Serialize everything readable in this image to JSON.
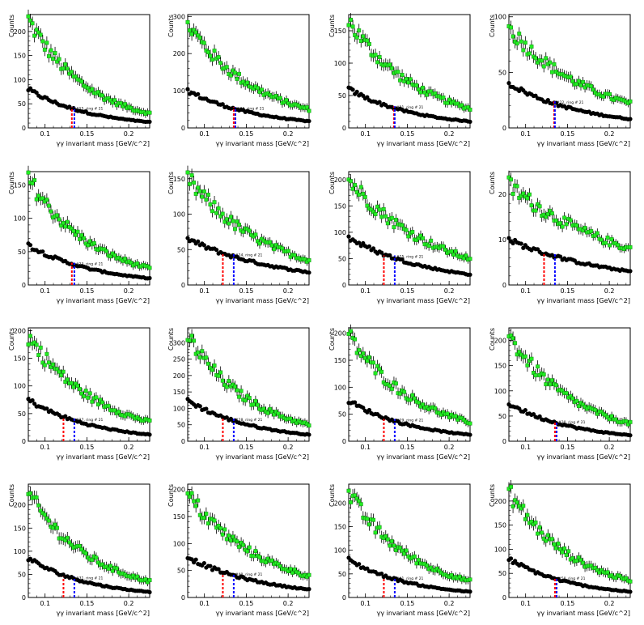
{
  "figure": {
    "colors": {
      "black_series": "#000000",
      "green_series": "#22ee22",
      "red_line": "#ff0000",
      "blue_line": "#0000ff",
      "frame": "#000000"
    }
  },
  "chart_data": [
    {
      "type": "scatter",
      "xlim": [
        0.08,
        0.225
      ],
      "ylim": [
        0,
        235
      ],
      "yticks": [
        0,
        50,
        100,
        150,
        200
      ],
      "xticks": [
        0.1,
        0.15,
        0.2
      ],
      "xlabel": "γγ invariant mass [GeV/c^2]",
      "ylabel": "Counts",
      "green_start": 225,
      "green_end": 30,
      "black_start": 80,
      "black_end": 12,
      "red_x": 0.132,
      "blue_x": 0.135,
      "annotation": "#15, ring # 21",
      "series": [
        {
          "name": "",
          "color": "#22ee22"
        },
        {
          "name": "",
          "color": "#000000"
        }
      ],
      "grid": false
    },
    {
      "type": "scatter",
      "xlim": [
        0.08,
        0.225
      ],
      "ylim": [
        0,
        305
      ],
      "yticks": [
        0,
        100,
        200,
        300
      ],
      "xticks": [
        0.1,
        0.15,
        0.2
      ],
      "xlabel": "γγ invariant mass [GeV/c^2]",
      "ylabel": "Counts",
      "green_start": 280,
      "green_end": 50,
      "black_start": 100,
      "black_end": 18,
      "red_x": 0.135,
      "blue_x": 0.137,
      "annotation": "#16, ring # 21",
      "series": [
        {
          "name": "",
          "color": "#22ee22"
        },
        {
          "name": "",
          "color": "#000000"
        }
      ],
      "grid": false
    },
    {
      "type": "scatter",
      "xlim": [
        0.08,
        0.225
      ],
      "ylim": [
        0,
        175
      ],
      "yticks": [
        0,
        50,
        100,
        150
      ],
      "xticks": [
        0.1,
        0.15,
        0.2
      ],
      "xlabel": "γγ invariant mass [GeV/c^2]",
      "ylabel": "Counts",
      "green_start": 165,
      "green_end": 30,
      "black_start": 60,
      "black_end": 10,
      "red_x": 0.134,
      "blue_x": 0.135,
      "annotation": "#21, ring # 21",
      "series": [
        {
          "name": "",
          "color": "#22ee22"
        },
        {
          "name": "",
          "color": "#000000"
        }
      ],
      "grid": false
    },
    {
      "type": "scatter",
      "xlim": [
        0.08,
        0.225
      ],
      "ylim": [
        0,
        102
      ],
      "yticks": [
        0,
        50,
        100
      ],
      "xticks": [
        0.1,
        0.15,
        0.2
      ],
      "xlabel": "γγ invariant mass [GeV/c^2]",
      "ylabel": "Counts",
      "green_start": 90,
      "green_end": 22,
      "black_start": 40,
      "black_end": 8,
      "red_x": 0.134,
      "blue_x": 0.135,
      "annotation": "#22, ring # 21",
      "series": [
        {
          "name": "",
          "color": "#22ee22"
        },
        {
          "name": "",
          "color": "#000000"
        }
      ],
      "grid": false
    },
    {
      "type": "scatter",
      "xlim": [
        0.08,
        0.225
      ],
      "ylim": [
        0,
        170
      ],
      "yticks": [
        0,
        50,
        100,
        150
      ],
      "xticks": [
        0.1,
        0.15,
        0.2
      ],
      "xlabel": "γγ invariant mass [GeV/c^2]",
      "ylabel": "Counts",
      "green_start": 160,
      "green_end": 25,
      "black_start": 60,
      "black_end": 10,
      "red_x": 0.132,
      "blue_x": 0.135,
      "annotation": "#23, ring # 21",
      "series": [
        {
          "name": "",
          "color": "#22ee22"
        },
        {
          "name": "",
          "color": "#000000"
        }
      ],
      "grid": false
    },
    {
      "type": "scatter",
      "xlim": [
        0.08,
        0.225
      ],
      "ylim": [
        0,
        160
      ],
      "yticks": [
        0,
        50,
        100,
        150
      ],
      "xticks": [
        0.1,
        0.15,
        0.2
      ],
      "xlabel": "γγ invariant mass [GeV/c^2]",
      "ylabel": "Counts",
      "green_start": 150,
      "green_end": 35,
      "black_start": 65,
      "black_end": 18,
      "red_x": 0.122,
      "blue_x": 0.135,
      "annotation": "#24, ring # 21",
      "series": [
        {
          "name": "",
          "color": "#22ee22"
        },
        {
          "name": "",
          "color": "#000000"
        }
      ],
      "grid": false
    },
    {
      "type": "scatter",
      "xlim": [
        0.08,
        0.225
      ],
      "ylim": [
        0,
        215
      ],
      "yticks": [
        0,
        50,
        100,
        150,
        200
      ],
      "xticks": [
        0.1,
        0.15,
        0.2
      ],
      "xlabel": "γγ invariant mass [GeV/c^2]",
      "ylabel": "Counts",
      "green_start": 200,
      "green_end": 50,
      "black_start": 90,
      "black_end": 20,
      "red_x": 0.122,
      "blue_x": 0.135,
      "annotation": "#25, ring # 21",
      "series": [
        {
          "name": "",
          "color": "#22ee22"
        },
        {
          "name": "",
          "color": "#000000"
        }
      ],
      "grid": false
    },
    {
      "type": "scatter",
      "xlim": [
        0.08,
        0.225
      ],
      "ylim": [
        0,
        25
      ],
      "yticks": [
        0,
        10,
        20
      ],
      "xticks": [
        0.1,
        0.15,
        0.2
      ],
      "xlabel": "γγ invariant mass [GeV/c^2]",
      "ylabel": "Counts",
      "green_start": 22,
      "green_end": 8,
      "black_start": 10,
      "black_end": 3,
      "red_x": 0.122,
      "blue_x": 0.135,
      "annotation": "",
      "series": [
        {
          "name": "",
          "color": "#22ee22"
        },
        {
          "name": "",
          "color": "#000000"
        }
      ],
      "grid": false
    },
    {
      "type": "scatter",
      "xlim": [
        0.08,
        0.225
      ],
      "ylim": [
        0,
        205
      ],
      "yticks": [
        0,
        50,
        100,
        150,
        200
      ],
      "xticks": [
        0.1,
        0.15,
        0.2
      ],
      "xlabel": "γγ invariant mass [GeV/c^2]",
      "ylabel": "Counts",
      "green_start": 190,
      "green_end": 35,
      "black_start": 75,
      "black_end": 12,
      "red_x": 0.122,
      "blue_x": 0.135,
      "annotation": "#27, ring # 21",
      "series": [
        {
          "name": "",
          "color": "#22ee22"
        },
        {
          "name": "",
          "color": "#000000"
        }
      ],
      "grid": false
    },
    {
      "type": "scatter",
      "xlim": [
        0.08,
        0.225
      ],
      "ylim": [
        0,
        345
      ],
      "yticks": [
        0,
        50,
        100,
        150,
        200,
        250,
        300
      ],
      "xticks": [
        0.1,
        0.15,
        0.2
      ],
      "xlabel": "γγ invariant mass [GeV/c^2]",
      "ylabel": "Counts",
      "green_start": 320,
      "green_end": 50,
      "black_start": 125,
      "black_end": 20,
      "red_x": 0.122,
      "blue_x": 0.135,
      "annotation": "#28, ring # 21",
      "series": [
        {
          "name": "",
          "color": "#22ee22"
        },
        {
          "name": "",
          "color": "#000000"
        }
      ],
      "grid": false
    },
    {
      "type": "scatter",
      "xlim": [
        0.08,
        0.225
      ],
      "ylim": [
        0,
        210
      ],
      "yticks": [
        0,
        50,
        100,
        150,
        200
      ],
      "xticks": [
        0.1,
        0.15,
        0.2
      ],
      "xlabel": "γγ invariant mass [GeV/c^2]",
      "ylabel": "Counts",
      "green_start": 195,
      "green_end": 35,
      "black_start": 75,
      "black_end": 12,
      "red_x": 0.122,
      "blue_x": 0.135,
      "annotation": "#29, ring # 21",
      "series": [
        {
          "name": "",
          "color": "#22ee22"
        },
        {
          "name": "",
          "color": "#000000"
        }
      ],
      "grid": false
    },
    {
      "type": "scatter",
      "xlim": [
        0.08,
        0.225
      ],
      "ylim": [
        0,
        225
      ],
      "yticks": [
        0,
        50,
        100,
        150,
        200
      ],
      "xticks": [
        0.1,
        0.15,
        0.2
      ],
      "xlabel": "γγ invariant mass [GeV/c^2]",
      "ylabel": "Counts",
      "green_start": 210,
      "green_end": 35,
      "black_start": 75,
      "black_end": 12,
      "red_x": 0.135,
      "blue_x": 0.137,
      "annotation": "#30, ring # 21",
      "series": [
        {
          "name": "",
          "color": "#22ee22"
        },
        {
          "name": "",
          "color": "#000000"
        }
      ],
      "grid": false
    },
    {
      "type": "scatter",
      "xlim": [
        0.08,
        0.225
      ],
      "ylim": [
        0,
        245
      ],
      "yticks": [
        0,
        50,
        100,
        150,
        200
      ],
      "xticks": [
        0.1,
        0.15,
        0.2
      ],
      "xlabel": "γγ invariant mass [GeV/c^2]",
      "ylabel": "Counts",
      "green_start": 225,
      "green_end": 35,
      "black_start": 85,
      "black_end": 12,
      "red_x": 0.122,
      "blue_x": 0.135,
      "annotation": "#31, ring # 21",
      "series": [
        {
          "name": "",
          "color": "#22ee22"
        },
        {
          "name": "",
          "color": "#000000"
        }
      ],
      "grid": false
    },
    {
      "type": "scatter",
      "xlim": [
        0.08,
        0.225
      ],
      "ylim": [
        0,
        210
      ],
      "yticks": [
        0,
        50,
        100,
        150,
        200
      ],
      "xticks": [
        0.1,
        0.15,
        0.2
      ],
      "xlabel": "γγ invariant mass [GeV/c^2]",
      "ylabel": "Counts",
      "green_start": 190,
      "green_end": 40,
      "black_start": 75,
      "black_end": 15,
      "red_x": 0.122,
      "blue_x": 0.135,
      "annotation": "#40, ring # 21",
      "series": [
        {
          "name": "",
          "color": "#22ee22"
        },
        {
          "name": "",
          "color": "#000000"
        }
      ],
      "grid": false
    },
    {
      "type": "scatter",
      "xlim": [
        0.08,
        0.225
      ],
      "ylim": [
        0,
        240
      ],
      "yticks": [
        0,
        50,
        100,
        150,
        200
      ],
      "xticks": [
        0.1,
        0.15,
        0.2
      ],
      "xlabel": "γγ invariant mass [GeV/c^2]",
      "ylabel": "Counts",
      "green_start": 220,
      "green_end": 35,
      "black_start": 80,
      "black_end": 12,
      "red_x": 0.122,
      "blue_x": 0.135,
      "annotation": "#41, ring # 21",
      "series": [
        {
          "name": "",
          "color": "#22ee22"
        },
        {
          "name": "",
          "color": "#000000"
        }
      ],
      "grid": false
    },
    {
      "type": "scatter",
      "xlim": [
        0.08,
        0.225
      ],
      "ylim": [
        0,
        235
      ],
      "yticks": [
        0,
        50,
        100,
        150,
        200
      ],
      "xticks": [
        0.1,
        0.15,
        0.2
      ],
      "xlabel": "γγ invariant mass [GeV/c^2]",
      "ylabel": "Counts",
      "green_start": 220,
      "green_end": 35,
      "black_start": 80,
      "black_end": 12,
      "red_x": 0.135,
      "blue_x": 0.137,
      "annotation": "#50, ring # 21",
      "series": [
        {
          "name": "",
          "color": "#22ee22"
        },
        {
          "name": "",
          "color": "#000000"
        }
      ],
      "grid": false
    }
  ]
}
